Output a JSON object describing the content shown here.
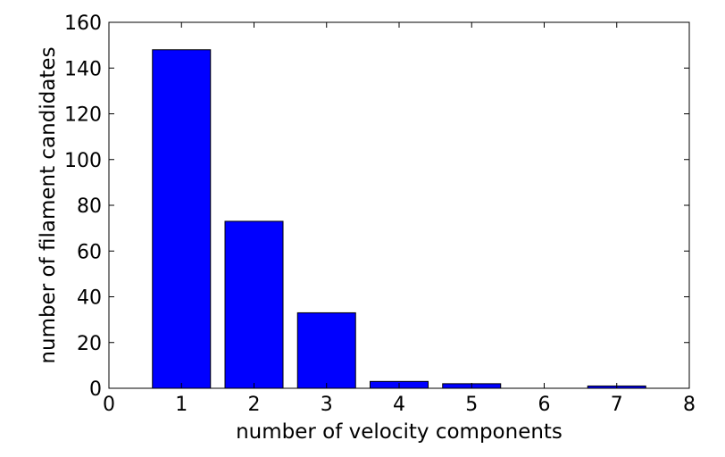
{
  "chart_data": {
    "type": "bar",
    "categories": [
      "1",
      "2",
      "3",
      "4",
      "5",
      "6",
      "7"
    ],
    "x": [
      1,
      2,
      3,
      4,
      5,
      6,
      7
    ],
    "values": [
      148,
      73,
      33,
      3,
      2,
      0,
      1
    ],
    "title": "",
    "xlabel": "number of velocity components",
    "ylabel": "number of filament candidates",
    "xlim": [
      0,
      8
    ],
    "ylim": [
      0,
      160
    ],
    "xticks": [
      0,
      1,
      2,
      3,
      4,
      5,
      6,
      7,
      8
    ],
    "yticks": [
      0,
      20,
      40,
      60,
      80,
      100,
      120,
      140,
      160
    ],
    "bar_width": 0.8,
    "grid": false,
    "legend": "none",
    "bar_color": "#0000ff",
    "edge_color": "#000000"
  }
}
